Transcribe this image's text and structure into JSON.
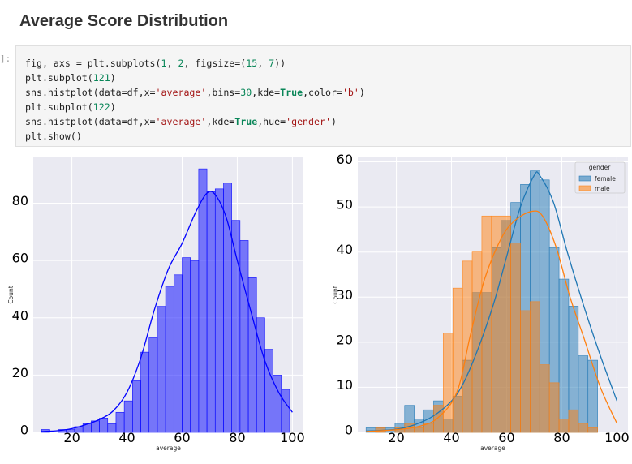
{
  "heading": "Average Score Distribution",
  "cell": {
    "prompt": "]:",
    "code_lines": [
      [
        [
          "t",
          "fig, axs = plt.subplots("
        ],
        [
          "num",
          "1"
        ],
        [
          "t",
          ", "
        ],
        [
          "num",
          "2"
        ],
        [
          "t",
          ", figsize=("
        ],
        [
          "num",
          "15"
        ],
        [
          "t",
          ", "
        ],
        [
          "num",
          "7"
        ],
        [
          "t",
          "))"
        ]
      ],
      [
        [
          "t",
          "plt.subplot("
        ],
        [
          "num",
          "121"
        ],
        [
          "t",
          ")"
        ]
      ],
      [
        [
          "t",
          "sns.histplot(data=df,x="
        ],
        [
          "str",
          "'average'"
        ],
        [
          "t",
          ",bins="
        ],
        [
          "num",
          "30"
        ],
        [
          "t",
          ",kde="
        ],
        [
          "kw",
          "True"
        ],
        [
          "t",
          ",color="
        ],
        [
          "str",
          "'b'"
        ],
        [
          "t",
          ")"
        ]
      ],
      [
        [
          "t",
          "plt.subplot("
        ],
        [
          "num",
          "122"
        ],
        [
          "t",
          ")"
        ]
      ],
      [
        [
          "t",
          "sns.histplot(data=df,x="
        ],
        [
          "str",
          "'average'"
        ],
        [
          "t",
          ",kde="
        ],
        [
          "kw",
          "True"
        ],
        [
          "t",
          ",hue="
        ],
        [
          "str",
          "'gender'"
        ],
        [
          "t",
          ")"
        ]
      ],
      [
        [
          "t",
          "plt.show()"
        ]
      ]
    ]
  },
  "chart_data": [
    {
      "type": "bar",
      "subtype": "histogram-with-kde",
      "xlabel": "average",
      "ylabel": "Count",
      "xlim": [
        6,
        104
      ],
      "ylim": [
        0,
        96
      ],
      "xticks": [
        20,
        40,
        60,
        80,
        100
      ],
      "yticks": [
        0,
        20,
        40,
        60,
        80
      ],
      "grid": true,
      "bar_color": "#0000ff",
      "bin_start": 9,
      "bin_width": 3,
      "values": [
        1,
        0,
        1,
        1,
        2,
        3,
        4,
        5,
        3,
        7,
        11,
        18,
        28,
        33,
        44,
        51,
        55,
        61,
        60,
        92,
        84,
        85,
        87,
        74,
        67,
        54,
        40,
        29,
        20,
        15
      ],
      "kde": [
        [
          9,
          0.3
        ],
        [
          15,
          0.6
        ],
        [
          20,
          1.3
        ],
        [
          25,
          2.7
        ],
        [
          30,
          4.5
        ],
        [
          35,
          7.5
        ],
        [
          40,
          14
        ],
        [
          45,
          26
        ],
        [
          50,
          43
        ],
        [
          55,
          57
        ],
        [
          60,
          66
        ],
        [
          65,
          77
        ],
        [
          69,
          83.5
        ],
        [
          72,
          83
        ],
        [
          76,
          75
        ],
        [
          80,
          60
        ],
        [
          85,
          42
        ],
        [
          90,
          25
        ],
        [
          95,
          14
        ],
        [
          100,
          7
        ]
      ]
    },
    {
      "type": "bar",
      "subtype": "histogram-with-kde-by-hue",
      "xlabel": "average",
      "ylabel": "Count",
      "xlim": [
        6,
        104
      ],
      "ylim": [
        0,
        61
      ],
      "xticks": [
        20,
        40,
        60,
        80,
        100
      ],
      "yticks": [
        0,
        10,
        20,
        30,
        40,
        50,
        60
      ],
      "grid": true,
      "legend": {
        "title": "gender",
        "position": "top-right"
      },
      "bin_start": 9,
      "bin_width": 3.5,
      "series": [
        {
          "name": "female",
          "color": "#1f77b4",
          "values": [
            1,
            1,
            1,
            2,
            6,
            3,
            5,
            7,
            3,
            8,
            16,
            31,
            31,
            41,
            47,
            51,
            55,
            58,
            56,
            41,
            34,
            28,
            17,
            16
          ],
          "kde": [
            [
              9,
              0.3
            ],
            [
              20,
              0.7
            ],
            [
              28,
              2
            ],
            [
              35,
              4.3
            ],
            [
              42,
              8.5
            ],
            [
              48,
              16
            ],
            [
              55,
              28
            ],
            [
              60,
              39
            ],
            [
              65,
              50
            ],
            [
              70,
              57
            ],
            [
              72,
              57
            ],
            [
              77,
              51
            ],
            [
              82,
              40
            ],
            [
              88,
              28
            ],
            [
              94,
              17
            ],
            [
              100,
              7
            ]
          ]
        },
        {
          "name": "male",
          "color": "#ff7f0e",
          "values": [
            0,
            1,
            0,
            1,
            2,
            1,
            2,
            6,
            22,
            32,
            38,
            40,
            48,
            48,
            48,
            42,
            27,
            29,
            15,
            11,
            3,
            5,
            2,
            1
          ],
          "kde": [
            [
              9,
              0.2
            ],
            [
              20,
              0.6
            ],
            [
              28,
              1.3
            ],
            [
              35,
              3.2
            ],
            [
              42,
              9
            ],
            [
              47,
              22
            ],
            [
              52,
              34
            ],
            [
              58,
              43
            ],
            [
              63,
              47
            ],
            [
              69,
              49
            ],
            [
              73,
              48
            ],
            [
              78,
              41
            ],
            [
              83,
              30
            ],
            [
              88,
              21
            ],
            [
              94,
              10
            ],
            [
              100,
              2
            ]
          ]
        }
      ]
    }
  ]
}
